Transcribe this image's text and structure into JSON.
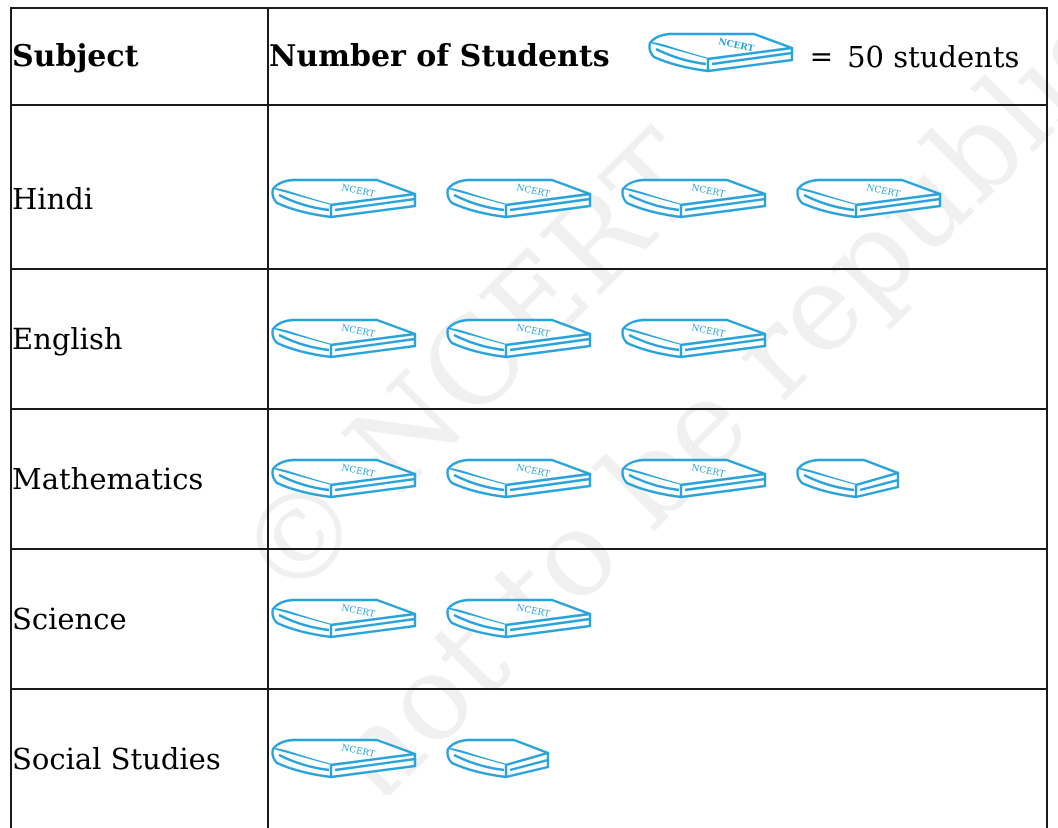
{
  "header": {
    "subject_label": "Subject",
    "students_label": "Number of Students",
    "key_equals": "=",
    "key_value": "50 students"
  },
  "book_label": "NCERT",
  "watermark": {
    "line1": "© NCERT",
    "line2": "not to be republished"
  },
  "colors": {
    "book_stroke": "#29a3dc",
    "book_fill": "#ffffff",
    "border": "#1a1a1a"
  },
  "chart_data": {
    "type": "pictograph",
    "key": {
      "symbol": "book-icon",
      "value_per_symbol": 50
    },
    "categories": [
      "Hindi",
      "English",
      "Mathematics",
      "Science",
      "Social Studies"
    ],
    "symbols": [
      4,
      3,
      3.5,
      2,
      1.5
    ],
    "values": [
      200,
      150,
      175,
      100,
      75
    ]
  }
}
